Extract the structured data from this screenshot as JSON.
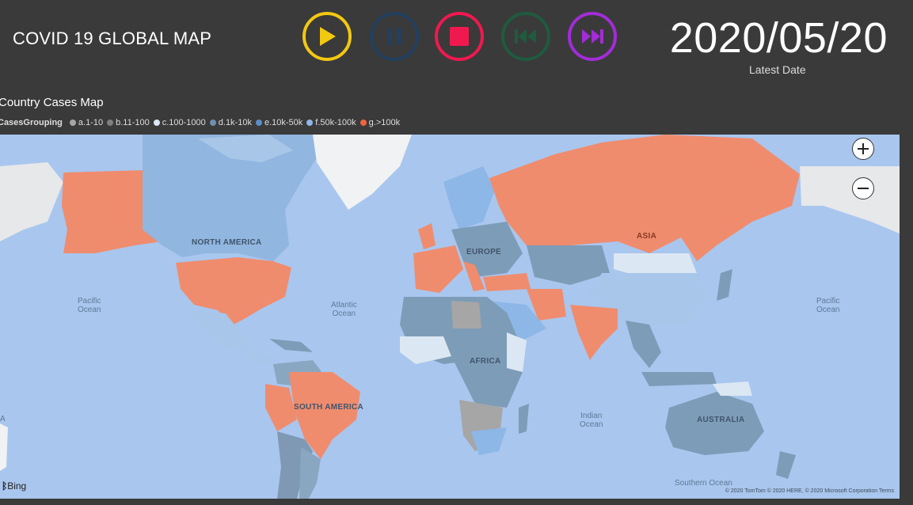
{
  "header": {
    "title": "COVID 19 GLOBAL MAP",
    "date": "2020/05/20",
    "date_label": "Latest Date"
  },
  "controls": [
    {
      "name": "play",
      "icon": "play-icon",
      "color": "#f2c811"
    },
    {
      "name": "pause",
      "icon": "pause-icon",
      "color": "#23405f"
    },
    {
      "name": "stop",
      "icon": "stop-icon",
      "color": "#f0194f"
    },
    {
      "name": "rewind",
      "icon": "skip-back-icon",
      "color": "#1f5b3f"
    },
    {
      "name": "forward",
      "icon": "skip-forward-icon",
      "color": "#a22cd9"
    }
  ],
  "map": {
    "title": "Country Cases Map",
    "legend_title": "CasesGrouping",
    "legend": [
      {
        "label": "a.1-10",
        "color": "#a6a6a6"
      },
      {
        "label": "b.11-100",
        "color": "#7f7f7f"
      },
      {
        "label": "c.100-1000",
        "color": "#dbe7f3"
      },
      {
        "label": "d.1k-10k",
        "color": "#6f8fae"
      },
      {
        "label": "e.10k-50k",
        "color": "#5a8cc8"
      },
      {
        "label": "f.50k-100k",
        "color": "#8db7e6"
      },
      {
        "label": "g.>100k",
        "color": "#f0643c"
      }
    ],
    "continents": {
      "north_america": "NORTH AMERICA",
      "europe": "EUROPE",
      "asia": "ASIA",
      "africa": "AFRICA",
      "south_america": "SOUTH AMERICA",
      "australia": "AUSTRALIA"
    },
    "oceans": {
      "pacific_left": "Pacific\nOcean",
      "atlantic": "Atlantic\nOcean",
      "indian": "Indian\nOcean",
      "pacific_right": "Pacific\nOcean",
      "southern": "Southern Ocean"
    },
    "attribution": "© 2020 TomTom © 2020 HERE, © 2020 Microsoft Corporation  Terms",
    "provider": "Bing",
    "edge_label": "A"
  }
}
